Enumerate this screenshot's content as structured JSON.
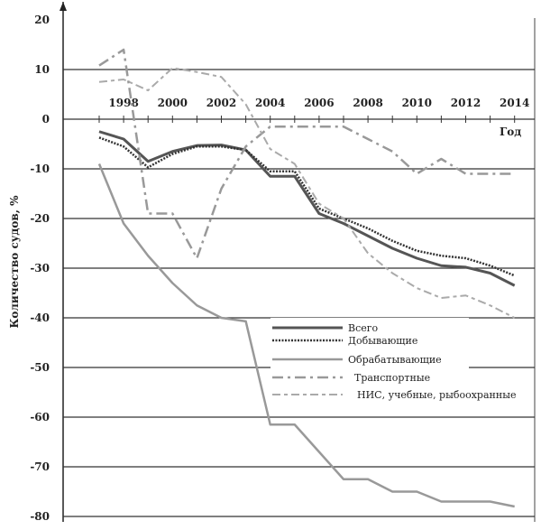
{
  "chart_data": {
    "type": "line",
    "title": "",
    "xlabel": "Год",
    "ylabel": "Количество судов, %",
    "ylim": [
      -80,
      20
    ],
    "yticks": [
      20,
      10,
      0,
      -10,
      -20,
      -30,
      -40,
      -50,
      -60,
      -70,
      -80
    ],
    "xtick_labels": [
      "1998",
      "2000",
      "2002",
      "2004",
      "2006",
      "2008",
      "2010",
      "2012",
      "2014"
    ],
    "grid": "horizontal",
    "legend_placement": "center-right",
    "x": [
      1997,
      1998,
      1999,
      2000,
      2001,
      2002,
      2003,
      2004,
      2005,
      2006,
      2007,
      2008,
      2009,
      2010,
      2011,
      2012,
      2013,
      2014
    ],
    "series": [
      {
        "name": "Всего",
        "style": "solid-thick",
        "color": "#555555",
        "values": [
          -2.5,
          -4,
          -8.5,
          -6.5,
          -5.3,
          -5.2,
          -6.2,
          -11.5,
          -11.5,
          -19,
          -21,
          -23.5,
          -26,
          -28,
          -29.5,
          -29.8,
          -31,
          -33.5
        ]
      },
      {
        "name": "Добывающие",
        "style": "dotted",
        "color": "#333333",
        "values": [
          -3.7,
          -5.5,
          -9.7,
          -7,
          -5.5,
          -5.5,
          -6.2,
          -10.5,
          -10.5,
          -18,
          -20,
          -22,
          -24.5,
          -26.5,
          -27.5,
          -28,
          -29.5,
          -31.5
        ]
      },
      {
        "name": "Обрабатывающие",
        "style": "solid",
        "color": "#999999",
        "values": [
          -9,
          -21,
          -27.5,
          -33,
          -37.5,
          -40,
          -40.7,
          -61.5,
          -61.5,
          -67,
          -72.5,
          -72.5,
          -75,
          -75,
          -77,
          -77,
          -77,
          -78
        ]
      },
      {
        "name": "Транспортные",
        "style": "dash-dot",
        "color": "#999999",
        "values": [
          10.8,
          14,
          -19,
          -19,
          -28,
          -14,
          -5.5,
          -1.5,
          -1.5,
          -1.5,
          -1.5,
          -4,
          -6.5,
          -11,
          -8,
          -11,
          -11,
          -11
        ]
      },
      {
        "name": "НИС, учебные, рыбоохранные",
        "style": "dash",
        "color": "#aaaaaa",
        "values": [
          7.5,
          8,
          5.8,
          10.3,
          9.5,
          8.5,
          3,
          -6,
          -9,
          -17,
          -20,
          -27,
          -31,
          -34,
          -36,
          -35.5,
          -37.5,
          -40
        ]
      }
    ]
  }
}
